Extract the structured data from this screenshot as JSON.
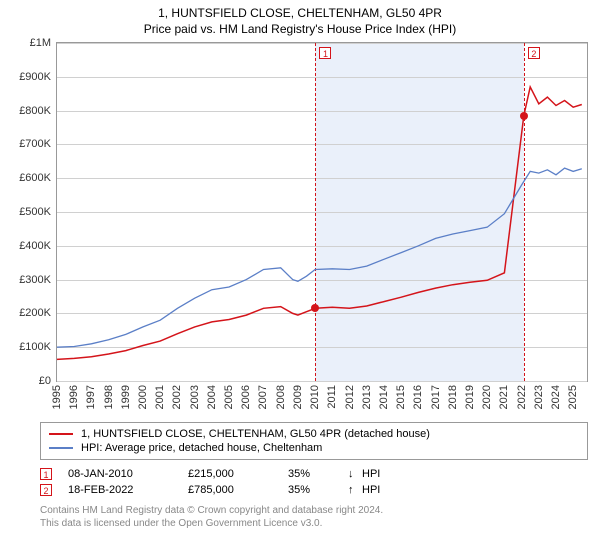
{
  "title_line1": "1, HUNTSFIELD CLOSE, CHELTENHAM, GL50 4PR",
  "title_line2": "Price paid vs. HM Land Registry's House Price Index (HPI)",
  "chart": {
    "type": "line",
    "x_min": 1995,
    "x_max": 2025.8,
    "y_min": 0,
    "y_max": 1000000,
    "shaded_region": {
      "x_start": 2010.02,
      "x_end": 2022.13
    },
    "y_ticks": [
      {
        "v": 0,
        "label": "£0"
      },
      {
        "v": 100000,
        "label": "£100K"
      },
      {
        "v": 200000,
        "label": "£200K"
      },
      {
        "v": 300000,
        "label": "£300K"
      },
      {
        "v": 400000,
        "label": "£400K"
      },
      {
        "v": 500000,
        "label": "£500K"
      },
      {
        "v": 600000,
        "label": "£600K"
      },
      {
        "v": 700000,
        "label": "£700K"
      },
      {
        "v": 800000,
        "label": "£800K"
      },
      {
        "v": 900000,
        "label": "£900K"
      },
      {
        "v": 1000000,
        "label": "£1M"
      }
    ],
    "x_ticks": [
      1995,
      1996,
      1997,
      1998,
      1999,
      2000,
      2001,
      2002,
      2003,
      2004,
      2005,
      2006,
      2007,
      2008,
      2009,
      2010,
      2011,
      2012,
      2013,
      2014,
      2015,
      2016,
      2017,
      2018,
      2019,
      2020,
      2021,
      2022,
      2023,
      2024,
      2025
    ],
    "grid_color": "#d0d0d0",
    "background_color": "#ffffff",
    "shaded_color": "#eaf0fa",
    "series": [
      {
        "name": "price_paid",
        "label": "1, HUNTSFIELD CLOSE, CHELTENHAM, GL50 4PR (detached house)",
        "color": "#d4141a",
        "line_width": 1.5,
        "data": [
          [
            1995,
            64000
          ],
          [
            1996,
            67000
          ],
          [
            1997,
            72000
          ],
          [
            1998,
            80000
          ],
          [
            1999,
            90000
          ],
          [
            2000,
            105000
          ],
          [
            2001,
            118000
          ],
          [
            2002,
            140000
          ],
          [
            2003,
            160000
          ],
          [
            2004,
            175000
          ],
          [
            2005,
            182000
          ],
          [
            2006,
            195000
          ],
          [
            2007,
            215000
          ],
          [
            2008,
            220000
          ],
          [
            2008.7,
            200000
          ],
          [
            2009,
            195000
          ],
          [
            2009.5,
            205000
          ],
          [
            2010.02,
            215000
          ],
          [
            2011,
            218000
          ],
          [
            2012,
            215000
          ],
          [
            2013,
            222000
          ],
          [
            2014,
            235000
          ],
          [
            2015,
            248000
          ],
          [
            2016,
            262000
          ],
          [
            2017,
            275000
          ],
          [
            2018,
            285000
          ],
          [
            2019,
            292000
          ],
          [
            2020,
            298000
          ],
          [
            2021,
            320000
          ],
          [
            2022.13,
            785000
          ],
          [
            2022.5,
            870000
          ],
          [
            2023,
            820000
          ],
          [
            2023.5,
            840000
          ],
          [
            2024,
            815000
          ],
          [
            2024.5,
            830000
          ],
          [
            2025,
            810000
          ],
          [
            2025.5,
            818000
          ]
        ]
      },
      {
        "name": "hpi",
        "label": "HPI: Average price, detached house, Cheltenham",
        "color": "#5b7fc7",
        "line_width": 1.3,
        "data": [
          [
            1995,
            100000
          ],
          [
            1996,
            102000
          ],
          [
            1997,
            110000
          ],
          [
            1998,
            122000
          ],
          [
            1999,
            138000
          ],
          [
            2000,
            160000
          ],
          [
            2001,
            180000
          ],
          [
            2002,
            215000
          ],
          [
            2003,
            245000
          ],
          [
            2004,
            270000
          ],
          [
            2005,
            278000
          ],
          [
            2006,
            300000
          ],
          [
            2007,
            330000
          ],
          [
            2008,
            335000
          ],
          [
            2008.7,
            300000
          ],
          [
            2009,
            295000
          ],
          [
            2009.5,
            310000
          ],
          [
            2010,
            330000
          ],
          [
            2011,
            332000
          ],
          [
            2012,
            330000
          ],
          [
            2013,
            340000
          ],
          [
            2014,
            360000
          ],
          [
            2015,
            380000
          ],
          [
            2016,
            400000
          ],
          [
            2017,
            422000
          ],
          [
            2018,
            435000
          ],
          [
            2019,
            445000
          ],
          [
            2020,
            455000
          ],
          [
            2021,
            495000
          ],
          [
            2022,
            580000
          ],
          [
            2022.5,
            620000
          ],
          [
            2023,
            615000
          ],
          [
            2023.5,
            625000
          ],
          [
            2024,
            610000
          ],
          [
            2024.5,
            630000
          ],
          [
            2025,
            620000
          ],
          [
            2025.5,
            628000
          ]
        ]
      }
    ],
    "event_lines": [
      {
        "n": "1",
        "x": 2010.02,
        "y": 215000,
        "color": "#d4141a"
      },
      {
        "n": "2",
        "x": 2022.13,
        "y": 785000,
        "color": "#d4141a"
      }
    ]
  },
  "legend": [
    {
      "color": "#d4141a",
      "label": "1, HUNTSFIELD CLOSE, CHELTENHAM, GL50 4PR (detached house)"
    },
    {
      "color": "#5b7fc7",
      "label": "HPI: Average price, detached house, Cheltenham"
    }
  ],
  "sales": [
    {
      "n": "1",
      "color": "#d4141a",
      "date": "08-JAN-2010",
      "price": "£215,000",
      "pct": "35%",
      "arrow": "↓",
      "hpi": "HPI"
    },
    {
      "n": "2",
      "color": "#d4141a",
      "date": "18-FEB-2022",
      "price": "£785,000",
      "pct": "35%",
      "arrow": "↑",
      "hpi": "HPI"
    }
  ],
  "footer_line1": "Contains HM Land Registry data © Crown copyright and database right 2024.",
  "footer_line2": "This data is licensed under the Open Government Licence v3.0."
}
